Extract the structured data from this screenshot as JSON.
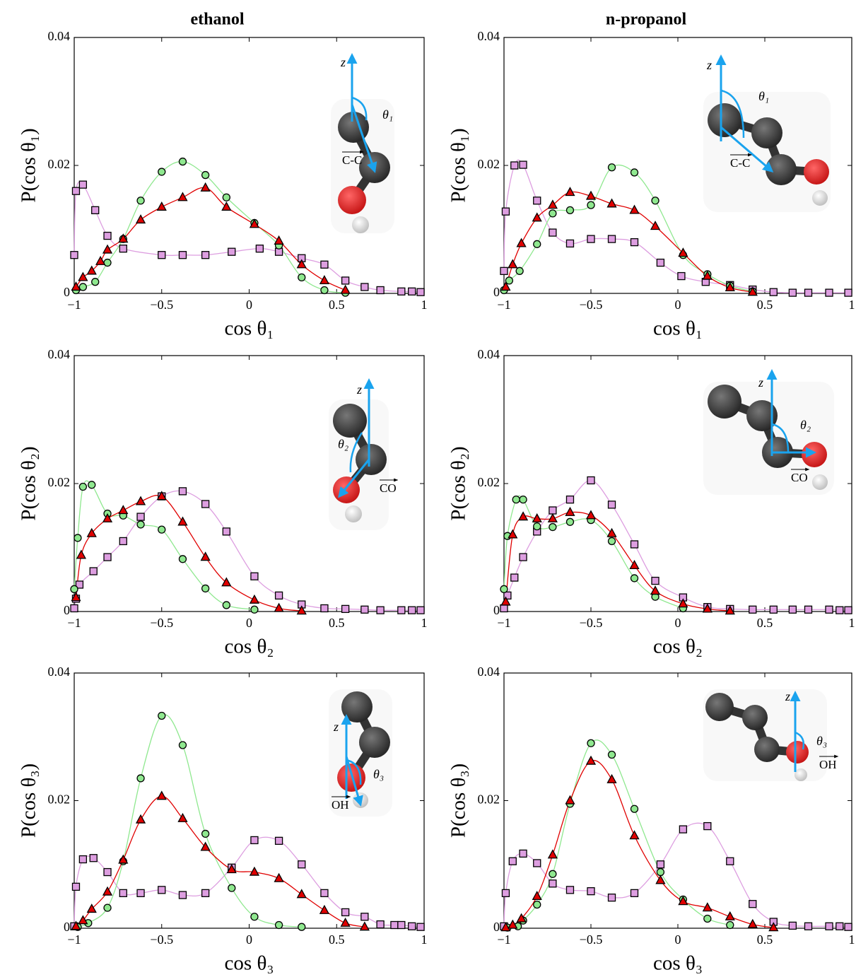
{
  "chart_data": [
    {
      "type": "line",
      "title": "ethanol",
      "x_label": "cos θ₁",
      "y_label": "P(cos θ₁)",
      "annotations": [
        "z",
        "θ₁",
        "C-C"
      ],
      "xlim": [
        -1,
        1
      ],
      "ylim": [
        0,
        0.04
      ],
      "xticks": [
        {
          "value": -1,
          "label": "−1"
        },
        {
          "value": -0.5,
          "label": "−0.5"
        },
        0,
        0.5,
        1
      ],
      "yticks": [
        0,
        0.02,
        0.04
      ],
      "series": [
        {
          "color": "#dd9ee0",
          "marker": "square",
          "x": [
            -1,
            -0.99,
            -0.95,
            -0.88,
            -0.81,
            -0.72,
            -0.5,
            -0.38,
            -0.25,
            -0.1,
            0.06,
            0.17,
            0.3,
            0.43,
            0.55,
            0.66,
            0.75,
            0.87,
            0.93,
            0.98
          ],
          "values": [
            0.006,
            0.016,
            0.017,
            0.013,
            0.009,
            0.007,
            0.006,
            0.006,
            0.006,
            0.0065,
            0.007,
            0.0065,
            0.0055,
            0.0045,
            0.002,
            0.001,
            0.0005,
            0.0003,
            0.0003,
            0.0002
          ]
        },
        {
          "color": "#8fe88f",
          "marker": "circle",
          "x": [
            -0.99,
            -0.95,
            -0.88,
            -0.81,
            -0.72,
            -0.62,
            -0.5,
            -0.38,
            -0.25,
            -0.13,
            0.03,
            0.17,
            0.3,
            0.43,
            0.55
          ],
          "values": [
            0.0005,
            0.001,
            0.0018,
            0.0048,
            0.0085,
            0.0145,
            0.019,
            0.0206,
            0.0185,
            0.015,
            0.011,
            0.0075,
            0.0025,
            0.0005,
            0.0001
          ]
        },
        {
          "color": "#e00000",
          "marker": "triangle",
          "x": [
            -0.99,
            -0.95,
            -0.9,
            -0.85,
            -0.81,
            -0.72,
            -0.62,
            -0.5,
            -0.38,
            -0.25,
            -0.13,
            0.03,
            0.17,
            0.3,
            0.43,
            0.55
          ],
          "values": [
            0.001,
            0.0025,
            0.0035,
            0.005,
            0.0068,
            0.0085,
            0.0115,
            0.0135,
            0.015,
            0.0165,
            0.0135,
            0.0108,
            0.0082,
            0.0045,
            0.002,
            0.0005
          ]
        }
      ]
    },
    {
      "type": "line",
      "title": "n-propanol",
      "x_label": "cos θ₁",
      "y_label": "P(cos θ₁)",
      "annotations": [
        "z",
        "θ₁",
        "C-C"
      ],
      "xlim": [
        -1,
        1
      ],
      "ylim": [
        0,
        0.04
      ],
      "xticks": [
        {
          "value": -1,
          "label": "−1"
        },
        {
          "value": -0.5,
          "label": "−0.5"
        },
        0,
        0.5,
        1
      ],
      "yticks": [
        0,
        0.02,
        0.04
      ],
      "series": [
        {
          "color": "#dd9ee0",
          "marker": "square",
          "x": [
            -1,
            -0.99,
            -0.94,
            -0.89,
            -0.81,
            -0.72,
            -0.62,
            -0.5,
            -0.38,
            -0.25,
            -0.1,
            0.02,
            0.16,
            0.3,
            0.43,
            0.55,
            0.66,
            0.75,
            0.87,
            0.98
          ],
          "values": [
            0.0035,
            0.0128,
            0.02,
            0.0201,
            0.0145,
            0.0095,
            0.0078,
            0.0085,
            0.0085,
            0.008,
            0.0048,
            0.0027,
            0.0018,
            0.0013,
            0.0006,
            0.0002,
            0.0001,
            0.0001,
            0.0001,
            0.0001
          ]
        },
        {
          "color": "#8fe88f",
          "marker": "circle",
          "x": [
            -1,
            -0.97,
            -0.91,
            -0.81,
            -0.72,
            -0.62,
            -0.5,
            -0.38,
            -0.25,
            -0.13,
            0.03,
            0.17,
            0.3,
            0.43
          ],
          "values": [
            0.0005,
            0.002,
            0.0035,
            0.0077,
            0.0125,
            0.013,
            0.0138,
            0.0197,
            0.0189,
            0.0145,
            0.006,
            0.003,
            0.0012,
            0.0003
          ]
        },
        {
          "color": "#e00000",
          "marker": "triangle",
          "x": [
            -0.99,
            -0.95,
            -0.9,
            -0.81,
            -0.72,
            -0.62,
            -0.5,
            -0.38,
            -0.25,
            -0.13,
            0.03,
            0.17,
            0.3,
            0.43
          ],
          "values": [
            0.001,
            0.0045,
            0.0078,
            0.0118,
            0.0138,
            0.0158,
            0.0152,
            0.014,
            0.013,
            0.0105,
            0.0063,
            0.0027,
            0.0009,
            0.0002
          ]
        }
      ]
    },
    {
      "type": "line",
      "x_label": "cos θ₂",
      "y_label": "P(cos θ₂)",
      "annotations": [
        "z",
        "θ₂",
        "CO"
      ],
      "xlim": [
        -1,
        1
      ],
      "ylim": [
        0,
        0.04
      ],
      "xticks": [
        {
          "value": -1,
          "label": "−1"
        },
        {
          "value": -0.5,
          "label": "−0.5"
        },
        0,
        0.5,
        1
      ],
      "yticks": [
        0,
        0.02,
        0.04
      ],
      "series": [
        {
          "color": "#dd9ee0",
          "marker": "square",
          "x": [
            -1,
            -0.99,
            -0.97,
            -0.89,
            -0.81,
            -0.72,
            -0.62,
            -0.5,
            -0.38,
            -0.25,
            -0.13,
            0.03,
            0.17,
            0.3,
            0.43,
            0.55,
            0.66,
            0.75,
            0.87,
            0.93,
            0.98
          ],
          "values": [
            0.0005,
            0.002,
            0.0042,
            0.0063,
            0.0085,
            0.011,
            0.0148,
            0.018,
            0.0188,
            0.0168,
            0.0125,
            0.0055,
            0.0025,
            0.0011,
            0.0005,
            0.0004,
            0.0003,
            0.0002,
            0.0002,
            0.0002,
            0.0002
          ]
        },
        {
          "color": "#8fe88f",
          "marker": "circle",
          "x": [
            -1,
            -0.98,
            -0.95,
            -0.9,
            -0.81,
            -0.72,
            -0.62,
            -0.5,
            -0.38,
            -0.25,
            -0.13,
            0.03
          ],
          "values": [
            0.0035,
            0.0115,
            0.0195,
            0.0198,
            0.0153,
            0.015,
            0.0136,
            0.0128,
            0.0082,
            0.0036,
            0.001,
            0.0003
          ]
        },
        {
          "color": "#e00000",
          "marker": "triangle",
          "x": [
            -0.99,
            -0.96,
            -0.9,
            -0.81,
            -0.72,
            -0.62,
            -0.5,
            -0.38,
            -0.25,
            -0.13,
            0.03,
            0.17,
            0.3
          ],
          "values": [
            0.0022,
            0.0088,
            0.0122,
            0.0145,
            0.0158,
            0.0172,
            0.018,
            0.014,
            0.0085,
            0.0045,
            0.0018,
            0.0005,
            0.0001
          ]
        }
      ]
    },
    {
      "type": "line",
      "x_label": "cos θ₂",
      "y_label": "P(cos θ₂)",
      "annotations": [
        "z",
        "θ₂",
        "CO"
      ],
      "xlim": [
        -1,
        1
      ],
      "ylim": [
        0,
        0.04
      ],
      "xticks": [
        {
          "value": -1,
          "label": "−1"
        },
        {
          "value": -0.5,
          "label": "−0.5"
        },
        0,
        0.5,
        1
      ],
      "yticks": [
        0,
        0.02,
        0.04
      ],
      "series": [
        {
          "color": "#dd9ee0",
          "marker": "square",
          "x": [
            -1,
            -0.98,
            -0.94,
            -0.89,
            -0.81,
            -0.72,
            -0.62,
            -0.5,
            -0.38,
            -0.25,
            -0.13,
            0.03,
            0.17,
            0.3,
            0.43,
            0.55,
            0.66,
            0.75,
            0.87,
            0.93,
            0.98
          ],
          "values": [
            0.0005,
            0.0025,
            0.0053,
            0.0085,
            0.0125,
            0.0158,
            0.0175,
            0.0205,
            0.0167,
            0.0105,
            0.0048,
            0.0022,
            0.0007,
            0.0004,
            0.0003,
            0.0003,
            0.0003,
            0.0003,
            0.0003,
            0.0002,
            0.0002
          ]
        },
        {
          "color": "#8fe88f",
          "marker": "circle",
          "x": [
            -1,
            -0.98,
            -0.93,
            -0.89,
            -0.81,
            -0.72,
            -0.62,
            -0.5,
            -0.38,
            -0.25,
            -0.13,
            0.03
          ],
          "values": [
            0.0035,
            0.0118,
            0.0175,
            0.0175,
            0.0133,
            0.0132,
            0.014,
            0.0143,
            0.011,
            0.0052,
            0.0023,
            0.0005
          ]
        },
        {
          "color": "#e00000",
          "marker": "triangle",
          "x": [
            -0.99,
            -0.95,
            -0.89,
            -0.81,
            -0.72,
            -0.62,
            -0.5,
            -0.38,
            -0.25,
            -0.13,
            0.03,
            0.17,
            0.3
          ],
          "values": [
            0.0015,
            0.012,
            0.0148,
            0.0145,
            0.0145,
            0.0155,
            0.015,
            0.0122,
            0.0072,
            0.0032,
            0.0012,
            0.0004,
            0.0001
          ]
        }
      ]
    },
    {
      "type": "line",
      "x_label": "cos θ₃",
      "y_label": "P(cos θ₃)",
      "annotations": [
        "z",
        "θ₃",
        "OH"
      ],
      "xlim": [
        -1,
        1
      ],
      "ylim": [
        0,
        0.04
      ],
      "xticks": [
        {
          "value": -1,
          "label": "−1"
        },
        {
          "value": -0.5,
          "label": "−0.5"
        },
        0,
        0.5,
        1
      ],
      "yticks": [
        0,
        0.02,
        0.04
      ],
      "series": [
        {
          "color": "#dd9ee0",
          "marker": "square",
          "x": [
            -1,
            -0.99,
            -0.95,
            -0.89,
            -0.81,
            -0.72,
            -0.62,
            -0.5,
            -0.38,
            -0.25,
            -0.1,
            0.03,
            0.17,
            0.3,
            0.43,
            0.55,
            0.66,
            0.75,
            0.83,
            0.87,
            0.93,
            0.98
          ],
          "values": [
            0.0003,
            0.0065,
            0.0108,
            0.011,
            0.0088,
            0.0055,
            0.0055,
            0.006,
            0.0052,
            0.0055,
            0.0095,
            0.0138,
            0.0137,
            0.01,
            0.0055,
            0.0025,
            0.0018,
            0.0006,
            0.0005,
            0.0005,
            0.0003,
            0.0002
          ]
        },
        {
          "color": "#8fe88f",
          "marker": "circle",
          "x": [
            -0.98,
            -0.92,
            -0.81,
            -0.72,
            -0.62,
            -0.5,
            -0.38,
            -0.25,
            -0.1,
            0.03,
            0.17,
            0.3
          ],
          "values": [
            0.0002,
            0.0008,
            0.0032,
            0.0105,
            0.0235,
            0.0333,
            0.0287,
            0.0148,
            0.0063,
            0.0018,
            0.0005,
            0.0002
          ]
        },
        {
          "color": "#e00000",
          "marker": "triangle",
          "x": [
            -0.99,
            -0.95,
            -0.9,
            -0.81,
            -0.72,
            -0.62,
            -0.5,
            -0.38,
            -0.25,
            -0.1,
            0.03,
            0.17,
            0.3,
            0.43,
            0.55,
            0.66
          ],
          "values": [
            0.0003,
            0.0012,
            0.003,
            0.0057,
            0.0107,
            0.017,
            0.0207,
            0.0172,
            0.0127,
            0.0092,
            0.0088,
            0.0078,
            0.0053,
            0.0028,
            0.0008,
            0.0002
          ]
        }
      ]
    },
    {
      "type": "line",
      "x_label": "cos θ₃",
      "y_label": "P(cos θ₃)",
      "annotations": [
        "z",
        "θ₃",
        "OH"
      ],
      "xlim": [
        -1,
        1
      ],
      "ylim": [
        0,
        0.04
      ],
      "xticks": [
        {
          "value": -1,
          "label": "−1"
        },
        {
          "value": -0.5,
          "label": "−0.5"
        },
        0,
        0.5,
        1
      ],
      "yticks": [
        0,
        0.02,
        0.04
      ],
      "series": [
        {
          "color": "#dd9ee0",
          "marker": "square",
          "x": [
            -1,
            -0.99,
            -0.95,
            -0.89,
            -0.81,
            -0.72,
            -0.62,
            -0.5,
            -0.38,
            -0.25,
            -0.1,
            0.03,
            0.17,
            0.3,
            0.43,
            0.55,
            0.66,
            0.75,
            0.87,
            0.93,
            0.98
          ],
          "values": [
            0.0003,
            0.0055,
            0.0105,
            0.0117,
            0.0102,
            0.007,
            0.006,
            0.0058,
            0.0048,
            0.0055,
            0.01,
            0.0155,
            0.016,
            0.0105,
            0.0038,
            0.001,
            0.0004,
            0.0003,
            0.0003,
            0.0003,
            0.0002
          ]
        },
        {
          "color": "#8fe88f",
          "marker": "circle",
          "x": [
            -0.98,
            -0.92,
            -0.89,
            -0.81,
            -0.72,
            -0.62,
            -0.5,
            -0.38,
            -0.25,
            -0.1,
            0.03,
            0.17,
            0.3
          ],
          "values": [
            0.0001,
            0.0003,
            0.0012,
            0.0037,
            0.0085,
            0.0195,
            0.029,
            0.0272,
            0.0187,
            0.0088,
            0.0045,
            0.0015,
            0.0005
          ]
        },
        {
          "color": "#e00000",
          "marker": "triangle",
          "x": [
            -0.99,
            -0.95,
            -0.9,
            -0.81,
            -0.72,
            -0.62,
            -0.5,
            -0.38,
            -0.25,
            -0.1,
            0.03,
            0.17,
            0.3,
            0.43,
            0.55
          ],
          "values": [
            0.0001,
            0.0005,
            0.0015,
            0.005,
            0.0115,
            0.02,
            0.0262,
            0.0233,
            0.0145,
            0.0075,
            0.0042,
            0.0032,
            0.0018,
            0.0006,
            0.0001
          ]
        }
      ]
    }
  ]
}
